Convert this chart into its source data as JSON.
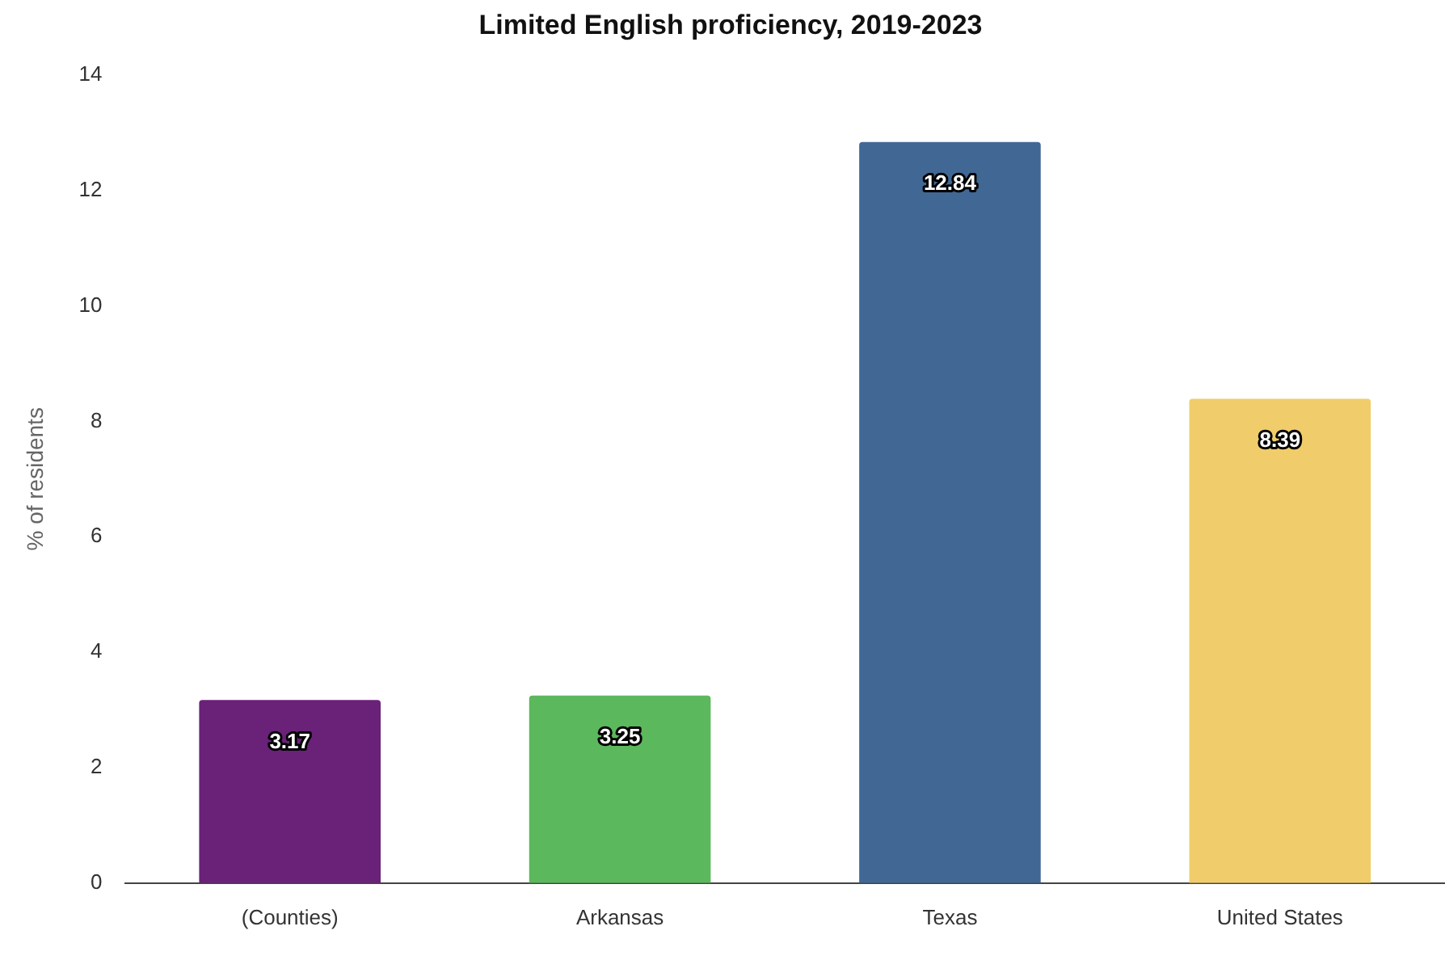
{
  "chart_data": {
    "type": "bar",
    "title": "Limited English proficiency, 2019-2023",
    "ylabel": "% of residents",
    "categories": [
      "(Counties)",
      "Arkansas",
      "Texas",
      "United States"
    ],
    "values": [
      3.17,
      3.25,
      12.84,
      8.39
    ],
    "colors": [
      "#6a2178",
      "#5cb85c",
      "#416894",
      "#f0cd6a"
    ],
    "ylim": [
      0,
      14
    ],
    "yticks": [
      0,
      2,
      4,
      6,
      8,
      10,
      12,
      14
    ],
    "grid": false,
    "legend": false,
    "data_labels": true
  }
}
